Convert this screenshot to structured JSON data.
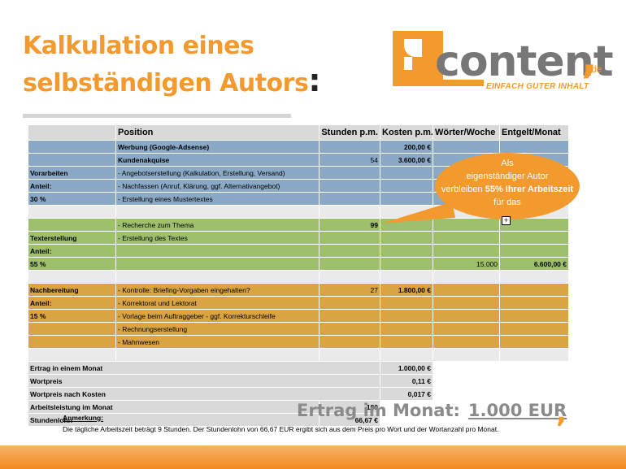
{
  "title": {
    "line1": "Kalkulation eines",
    "line2": "selbständigen Autors",
    "colon": ":"
  },
  "logo": {
    "word": "content",
    "comma": ",",
    "tld": "de",
    "tagline": "EINFACH GUTER INHALT",
    "icon": "content-logo-mark-icon"
  },
  "colors": {
    "accent": "#f29a2e",
    "blue": "#8aa9c7",
    "green": "#9ec06c",
    "gold": "#d9a441",
    "gray": "#d9d9d9"
  },
  "table": {
    "headers": [
      "",
      "Position",
      "Stunden p.m.",
      "Kosten p.m.",
      "Wörter/Woche",
      "Entgelt/Monat"
    ],
    "rows": [
      [
        "",
        "Werbung (Google-Adsense)",
        "",
        "200,00 €",
        "",
        ""
      ],
      [
        "",
        "Kundenakquise",
        "54",
        "3.600,00 €",
        "",
        ""
      ],
      [
        "Vorarbeiten",
        "- Angebotserstellung (Kalkulation, Erstellung, Versand)",
        "",
        "",
        "",
        ""
      ],
      [
        "Anteil:",
        "- Nachfassen (Anruf, Klärung, ggf. Alternativangebot)",
        "",
        "",
        "",
        ""
      ],
      [
        "30 %",
        "- Erstellung eines Mustertextes",
        "",
        "",
        "",
        ""
      ],
      [
        "",
        "- Recherche zum Thema",
        "99",
        "",
        "",
        ""
      ],
      [
        "Texterstellung",
        "- Erstellung des Textes",
        "",
        "",
        "",
        ""
      ],
      [
        "Anteil:",
        "",
        "",
        "",
        "",
        ""
      ],
      [
        "55 %",
        "",
        "",
        "",
        "15.000",
        "6.600,00 €"
      ],
      [
        "Nachbereitung",
        "- Kontrolle: Briefing-Vorgaben eingehalten?",
        "27",
        "1.800,00 €",
        "",
        ""
      ],
      [
        "Anteil:",
        "- Korrektorat und Lektorat",
        "",
        "",
        "",
        ""
      ],
      [
        "15 %",
        "- Vorlage beim Auftraggeber - ggf. Korrekturschleife",
        "",
        "",
        "",
        ""
      ],
      [
        "",
        "- Rechnungserstellung",
        "",
        "",
        "",
        ""
      ],
      [
        "",
        "- Mahnwesen",
        "",
        "",
        "",
        ""
      ]
    ],
    "summary": [
      {
        "label": "Ertrag in einem Monat",
        "value": "1.000,00 €"
      },
      {
        "label": "Wortpreis",
        "value": "0,11 €"
      },
      {
        "label": "Wortpreis nach Kosten",
        "value": "0,017 €"
      },
      {
        "label": "Arbeitsleistung im Monat",
        "value": "180"
      },
      {
        "label": "Stundenlohn",
        "value": "66,67 €"
      }
    ]
  },
  "bubble": {
    "line1": "Als",
    "line2": "eigenständiger Autor",
    "line3a": "verbleiben ",
    "line3b": "55% Ihrer Arbeitszeit",
    "line4": "für das"
  },
  "ertrag": {
    "label": "Ertrag im Monat:",
    "value": "1.000 EUR",
    "comma": ","
  },
  "note": {
    "heading": "Anmerkung:",
    "text": "Die tägliche Arbeitszeit beträgt 9 Stunden. Der Stundenlohn von 66,67 EUR ergibt sich aus dem Preis pro Wort und der Wortanzahl pro Monat."
  }
}
